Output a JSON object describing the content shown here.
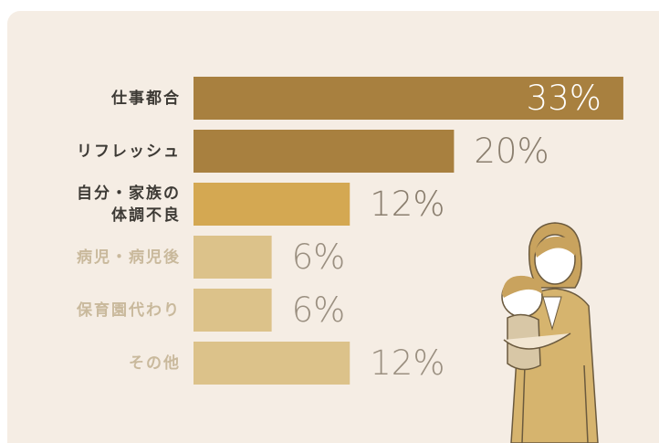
{
  "chart_data": {
    "type": "bar",
    "orientation": "horizontal",
    "categories": [
      "仕事都合",
      "リフレッシュ",
      "自分・家族の\n体調不良",
      "病児・病児後",
      "保育園代わり",
      "その他"
    ],
    "values": [
      33,
      20,
      12,
      6,
      6,
      12
    ],
    "value_labels": [
      "33%",
      "20%",
      "12%",
      "6%",
      "6%",
      "12%"
    ],
    "colors": [
      "#a8803f",
      "#a8803f",
      "#d4a852",
      "#dcc28a",
      "#dcc28a",
      "#dcc28a"
    ],
    "label_colors": [
      "#ffffff",
      "#8a7e6e",
      "#8a7e6e",
      "#9a8f80",
      "#9a8f80",
      "#9a8f80"
    ],
    "category_colors": [
      "#3d3a35",
      "#3d3a35",
      "#3d3a35",
      "#c9b99c",
      "#c9b99c",
      "#c9b99c"
    ]
  }
}
